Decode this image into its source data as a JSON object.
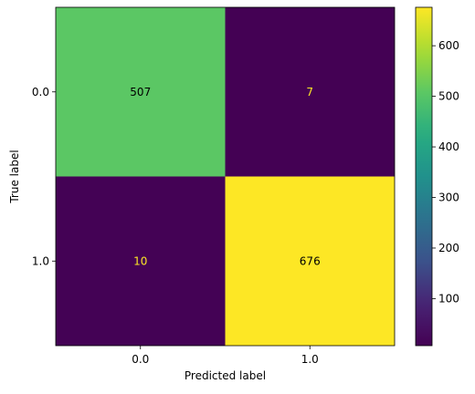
{
  "chart_data": {
    "type": "heatmap",
    "title": "",
    "xlabel": "Predicted label",
    "ylabel": "True label",
    "x_categories": [
      "0.0",
      "1.0"
    ],
    "y_categories": [
      "0.0",
      "1.0"
    ],
    "values": [
      [
        507,
        7
      ],
      [
        10,
        676
      ]
    ],
    "colormap": "viridis",
    "color_range": [
      7,
      676
    ],
    "colorbar_ticks": [
      "100",
      "200",
      "300",
      "400",
      "500",
      "600"
    ],
    "colorbar_tick_values": [
      100,
      200,
      300,
      400,
      500,
      600
    ],
    "text_colors": {
      "on_dark": "#fde725",
      "on_light": "#000000"
    },
    "grid": false
  }
}
